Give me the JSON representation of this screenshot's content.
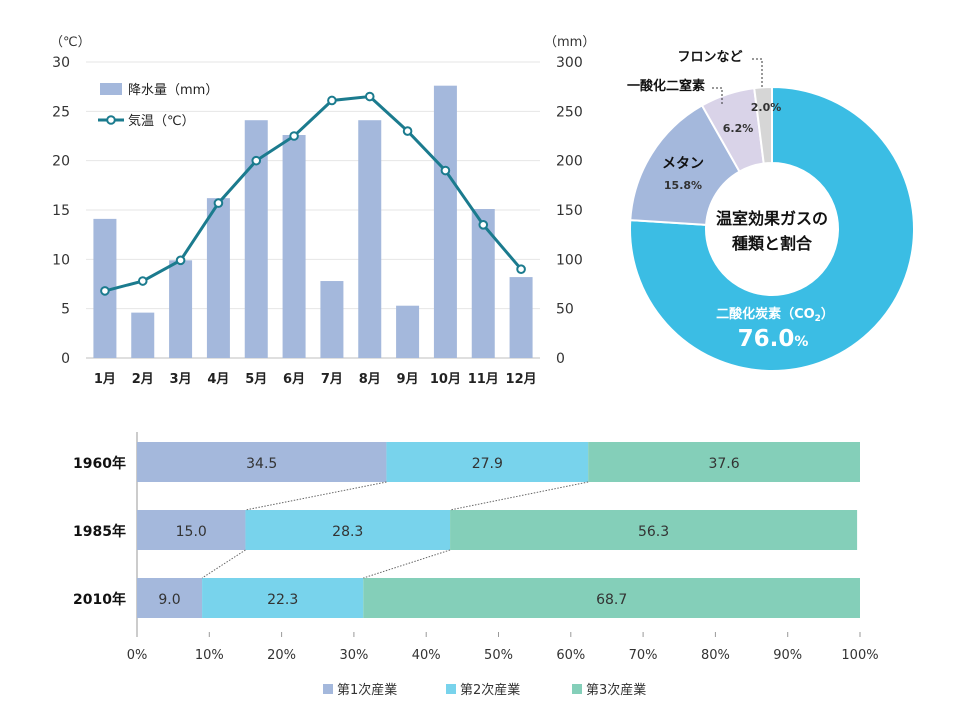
{
  "chart_data": [
    {
      "type": "bar+line",
      "categories": [
        "1月",
        "2月",
        "3月",
        "4月",
        "5月",
        "6月",
        "7月",
        "8月",
        "9月",
        "10月",
        "11月",
        "12月"
      ],
      "series": [
        {
          "name": "降水量（mm）",
          "type": "bar",
          "axis": "right",
          "color": "#a4b8dc",
          "values": [
            141,
            46,
            99,
            162,
            241,
            226,
            78,
            241,
            53,
            276,
            151,
            82
          ]
        },
        {
          "name": "気温（℃）",
          "type": "line",
          "axis": "left",
          "color": "#1b7b8e",
          "values": [
            6.8,
            7.8,
            9.9,
            15.7,
            20.0,
            22.5,
            26.1,
            26.5,
            23.0,
            19.0,
            13.5,
            9.0
          ]
        }
      ],
      "y_left": {
        "unit": "（℃）",
        "ylim": [
          0,
          30
        ],
        "ticks": [
          0,
          5,
          10,
          15,
          20,
          25,
          30
        ]
      },
      "y_right": {
        "unit": "（mm）",
        "ylim": [
          0,
          300
        ],
        "ticks": [
          0,
          50,
          100,
          150,
          200,
          250,
          300
        ]
      },
      "legend": {
        "placement": "top-left"
      },
      "grid": true
    },
    {
      "type": "pie",
      "center_label": [
        "温室効果ガスの",
        "種類と割合"
      ],
      "slices": [
        {
          "label": "二酸化炭素（CO",
          "sub": "2",
          "label_end": "）",
          "value": 76.0,
          "value_text": "76.0",
          "unit": "%",
          "color": "#3bbde4"
        },
        {
          "label": "メタン",
          "value": 15.8,
          "value_text": "15.8%",
          "color": "#a4b8dc"
        },
        {
          "label": "一酸化二窒素",
          "value": 6.2,
          "value_text": "6.2%",
          "color": "#d9d3e8"
        },
        {
          "label": "フロンなど",
          "value": 2.0,
          "value_text": "2.0%",
          "color": "#d6d6d6"
        }
      ]
    },
    {
      "type": "bar",
      "orientation": "horizontal",
      "stacked": "percent",
      "categories": [
        "1960年",
        "1985年",
        "2010年"
      ],
      "series": [
        {
          "name": "第1次産業",
          "color": "#a4b8dc",
          "values": [
            34.5,
            15.0,
            9.0
          ],
          "labels": [
            "34.5",
            "15.0",
            "9.0"
          ]
        },
        {
          "name": "第2次産業",
          "color": "#78d3ec",
          "values": [
            27.9,
            28.3,
            22.3
          ],
          "labels": [
            "27.9",
            "28.3",
            "22.3"
          ]
        },
        {
          "name": "第3次産業",
          "color": "#84cfb9",
          "values": [
            37.6,
            56.3,
            68.7
          ],
          "labels": [
            "37.6",
            "56.3",
            "68.7"
          ]
        }
      ],
      "xlim": [
        0,
        100
      ],
      "xticks": [
        "0%",
        "10%",
        "20%",
        "30%",
        "40%",
        "50%",
        "60%",
        "70%",
        "80%",
        "90%",
        "100%"
      ],
      "legend": {
        "placement": "bottom"
      }
    }
  ]
}
